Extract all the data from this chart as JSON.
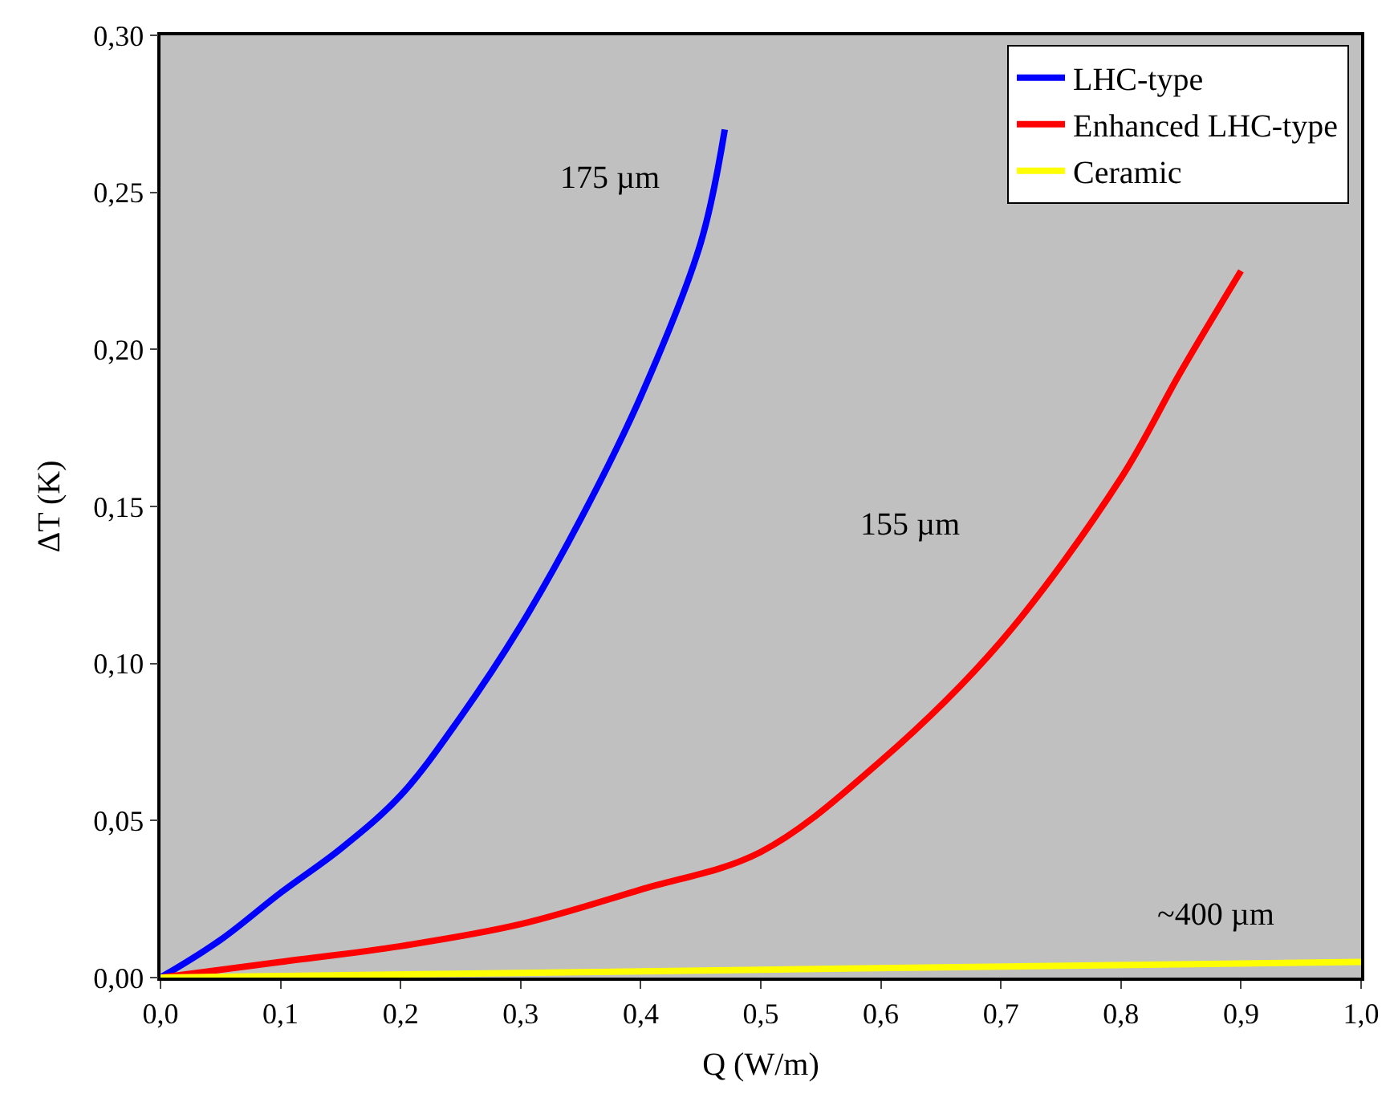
{
  "chart_data": {
    "type": "line",
    "xlabel": "Q (W/m)",
    "ylabel": "ΔT (K)",
    "xlim": [
      0,
      1.0
    ],
    "ylim": [
      0,
      0.3
    ],
    "xticks": [
      {
        "value": 0,
        "label": "0,0"
      },
      {
        "value": 0.1,
        "label": "0,1"
      },
      {
        "value": 0.2,
        "label": "0,2"
      },
      {
        "value": 0.3,
        "label": "0,3"
      },
      {
        "value": 0.4,
        "label": "0,4"
      },
      {
        "value": 0.5,
        "label": "0,5"
      },
      {
        "value": 0.6,
        "label": "0,6"
      },
      {
        "value": 0.7,
        "label": "0,7"
      },
      {
        "value": 0.8,
        "label": "0,8"
      },
      {
        "value": 0.9,
        "label": "0,9"
      },
      {
        "value": 1.0,
        "label": "1,0"
      }
    ],
    "yticks": [
      {
        "value": 0,
        "label": "0,00"
      },
      {
        "value": 0.05,
        "label": "0,05"
      },
      {
        "value": 0.1,
        "label": "0,10"
      },
      {
        "value": 0.15,
        "label": "0,15"
      },
      {
        "value": 0.2,
        "label": "0,20"
      },
      {
        "value": 0.25,
        "label": "0,25"
      },
      {
        "value": 0.3,
        "label": "0,30"
      }
    ],
    "grid": false,
    "legend": "top right",
    "marker": "none",
    "line_style": "solid",
    "series": [
      {
        "name": "LHC-type",
        "color": "#0000ff",
        "x": [
          0,
          0.05,
          0.1,
          0.15,
          0.2,
          0.25,
          0.3,
          0.35,
          0.4,
          0.45,
          0.47
        ],
        "values": [
          0,
          0.012,
          0.027,
          0.041,
          0.058,
          0.083,
          0.112,
          0.146,
          0.185,
          0.234,
          0.27
        ]
      },
      {
        "name": "Enhanced LHC-type",
        "color": "#ff0000",
        "x": [
          0,
          0.1,
          0.2,
          0.3,
          0.4,
          0.5,
          0.6,
          0.7,
          0.8,
          0.85,
          0.9
        ],
        "values": [
          0,
          0.005,
          0.01,
          0.017,
          0.028,
          0.04,
          0.069,
          0.107,
          0.159,
          0.193,
          0.225
        ]
      },
      {
        "name": "Ceramic",
        "color": "#ffff00",
        "x": [
          0,
          0.5,
          1.0
        ],
        "values": [
          0,
          0.0025,
          0.005
        ]
      }
    ],
    "annotations": [
      "175 µm",
      "155 µm",
      "~400 µm"
    ]
  }
}
